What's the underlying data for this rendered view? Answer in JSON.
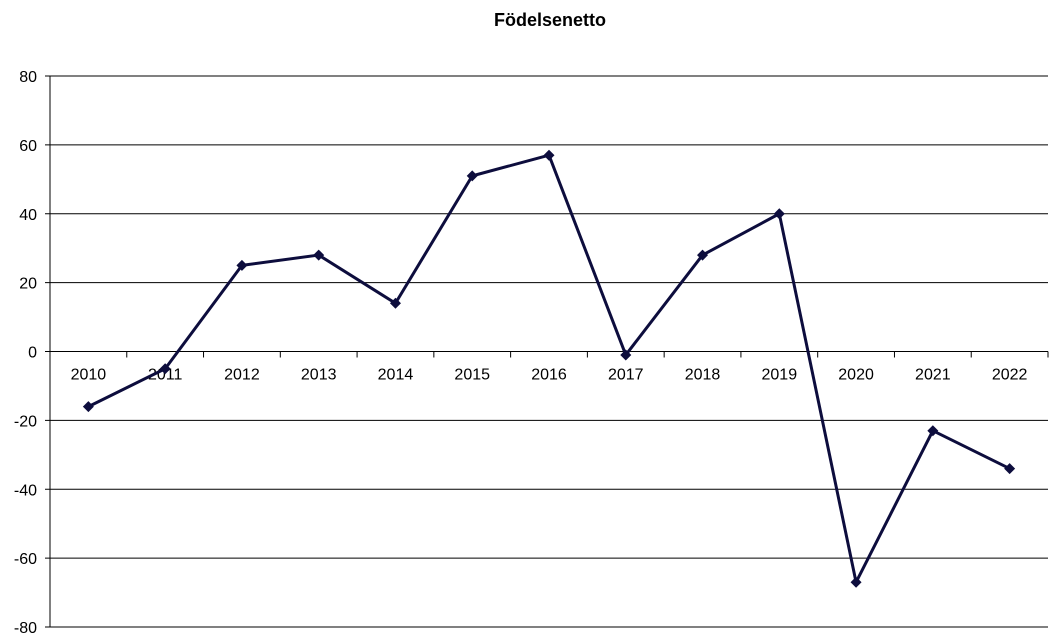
{
  "chart_data": {
    "type": "line",
    "title": "Födelsenetto",
    "xlabel": "",
    "ylabel": "",
    "categories": [
      "2010",
      "2011",
      "2012",
      "2013",
      "2014",
      "2015",
      "2016",
      "2017",
      "2018",
      "2019",
      "2020",
      "2021",
      "2022"
    ],
    "series": [
      {
        "values": [
          -16,
          -5,
          25,
          28,
          14,
          51,
          57,
          -1,
          28,
          40,
          -67,
          -23,
          -34
        ]
      }
    ],
    "ylim": [
      -80,
      80
    ],
    "yticks": [
      -80,
      -60,
      -40,
      -20,
      0,
      20,
      40,
      60,
      80
    ],
    "grid": true,
    "legend": "none",
    "colors": {
      "line": "#0d0d3d",
      "grid": "#000000"
    }
  }
}
